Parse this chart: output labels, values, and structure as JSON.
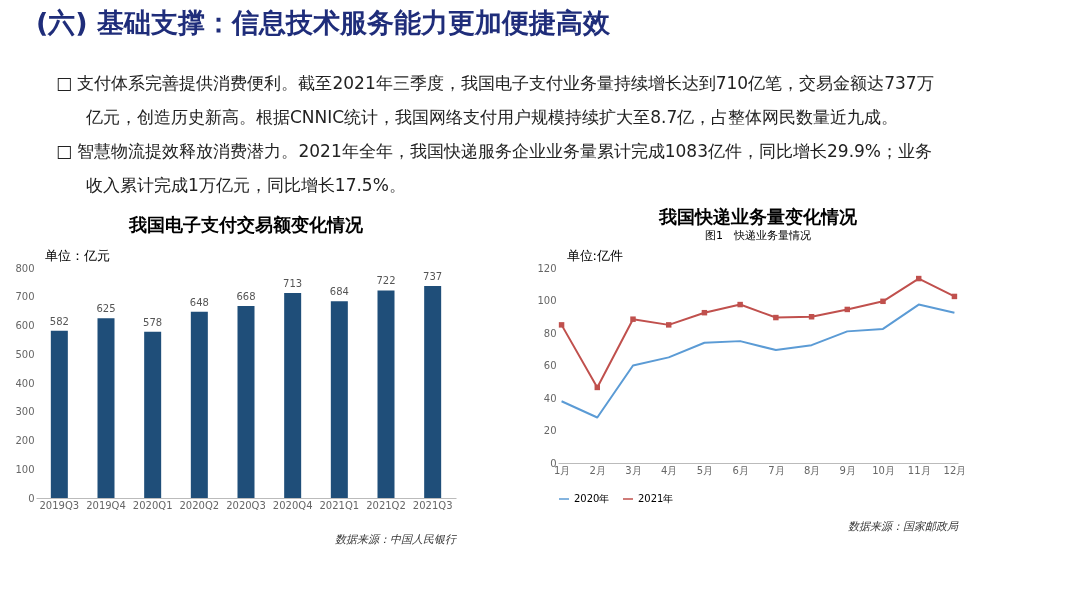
{
  "chart_data": [
    {
      "type": "other",
      "title": "(六) 基础支撑：信息技术服务能力更加便捷高效",
      "annotations": [
        "□ 支付体系完善提供消费便利。截至2021年三季度，我国电子支付业务量持续增长达到710亿笔，交易金额达737万",
        "亿元，创造历史新高。根据CNNIC统计，我国网络支付用户规模持续扩大至8.7亿，占整体网民数量近九成。",
        "□ 智慧物流提效释放消费潜力。2021年全年，我国快递服务企业业务量累计完成1083亿件，同比增长29.9%；业务",
        "收入累计完成1万亿元，同比增长17.5%。"
      ]
    },
    {
      "type": "bar",
      "title": "我国电子支付交易额变化情况",
      "ylabel": "单位：亿元",
      "categories": [
        "2019Q3",
        "2019Q4",
        "2020Q1",
        "2020Q2",
        "2020Q3",
        "2020Q4",
        "2021Q1",
        "2021Q2",
        "2021Q3"
      ],
      "values": [
        582,
        625,
        578,
        648,
        668,
        713,
        684,
        722,
        737
      ],
      "color": "#1f4e79",
      "ylim": [
        0,
        800
      ],
      "yticks": [
        0,
        100,
        200,
        300,
        400,
        500,
        600,
        700,
        800
      ],
      "data_labels": true,
      "annotations": [
        "数据来源：中国人民银行"
      ]
    },
    {
      "type": "line",
      "title": "我国快递业务量变化情况",
      "subtitle": "图1　快递业务量情况",
      "ylabel": "单位:亿件",
      "categories": [
        "1月",
        "2月",
        "3月",
        "4月",
        "5月",
        "6月",
        "7月",
        "8月",
        "9月",
        "10月",
        "11月",
        "12月"
      ],
      "series": [
        {
          "name": "2020年",
          "color": "#5b9bd5",
          "marker": "none",
          "values": [
            38,
            28,
            60,
            65,
            74,
            75,
            69.5,
            72.5,
            81,
            82.5,
            97.5,
            92.5
          ]
        },
        {
          "name": "2021年",
          "color": "#c0504d",
          "marker": "square",
          "values": [
            85,
            46.5,
            88.5,
            85,
            92.5,
            97.5,
            89.5,
            90,
            94.5,
            99.5,
            113.5,
            102.5
          ]
        }
      ],
      "ylim": [
        0,
        120
      ],
      "yticks": [
        0,
        20,
        40,
        60,
        80,
        100,
        120
      ],
      "legend": "bottom",
      "annotations": [
        "数据来源：国家邮政局"
      ]
    }
  ]
}
